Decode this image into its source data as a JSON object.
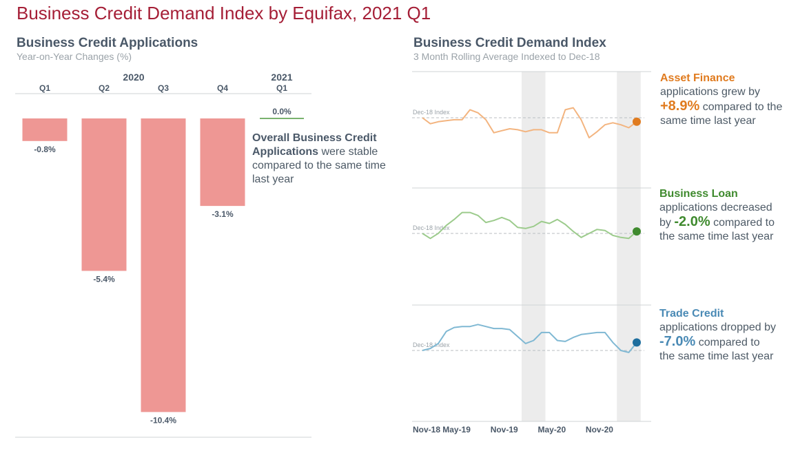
{
  "title": "Business Credit Demand Index by Equifax, 2021 Q1",
  "left": {
    "title": "Business Credit Applications",
    "subtitle": "Year-on-Year Changes (%)",
    "annotation": {
      "bold": "Overall Business Credit Applications",
      "rest": " were stable compared to the same time last year"
    }
  },
  "right": {
    "title": "Business Credit Demand Index",
    "subtitle": "3 Month Rolling Average Indexed to Dec-18",
    "baseline_label": "Dec-18 Index",
    "callouts": [
      {
        "title": "Asset Finance",
        "pre": "applications grew by",
        "value": "+8.9%",
        "post": "compared to the same time last year",
        "color": "#e07b1f"
      },
      {
        "title": "Business Loan",
        "pre": "applications decreased by",
        "value": "-2.0%",
        "post": "compared to the same time last year",
        "color": "#3f8a2e"
      },
      {
        "title": "Trade Credit",
        "pre": "applications dropped by",
        "value": "-7.0%",
        "post": "compared to the same time last year",
        "color": "#4a8ab5"
      }
    ]
  },
  "chart_data": [
    {
      "type": "bar",
      "title": "Business Credit Applications",
      "subtitle": "Year-on-Year Changes (%)",
      "groups": [
        {
          "label": "2020",
          "categories": [
            "Q1",
            "Q2",
            "Q3",
            "Q4"
          ]
        },
        {
          "label": "2021",
          "categories": [
            "Q1"
          ]
        }
      ],
      "categories": [
        "Q1",
        "Q2",
        "Q3",
        "Q4",
        "Q1"
      ],
      "values": [
        -0.8,
        -5.4,
        -10.4,
        -3.1,
        0.0
      ],
      "data_labels": [
        "-0.8%",
        "-5.4%",
        "-10.4%",
        "-3.1%",
        "0.0%"
      ],
      "colors": [
        "#ee9794",
        "#ee9794",
        "#ee9794",
        "#ee9794",
        "#79b26e"
      ],
      "ylim": [
        -10.9,
        0.5
      ]
    },
    {
      "type": "line",
      "title": "Business Credit Demand Index",
      "subtitle": "3 Month Rolling Average Indexed to Dec-18",
      "x_ticks": [
        "Nov-18",
        "May-19",
        "Nov-19",
        "May-20",
        "Nov-20"
      ],
      "x": [
        "2018-12",
        "2019-01",
        "2019-02",
        "2019-03",
        "2019-04",
        "2019-05",
        "2019-06",
        "2019-07",
        "2019-08",
        "2019-09",
        "2019-10",
        "2019-11",
        "2019-12",
        "2020-01",
        "2020-02",
        "2020-03",
        "2020-04",
        "2020-05",
        "2020-06",
        "2020-07",
        "2020-08",
        "2020-09",
        "2020-10",
        "2020-11",
        "2020-12",
        "2021-01",
        "2021-02",
        "2021-03"
      ],
      "shaded_periods": [
        [
          "2020-01",
          "2020-03"
        ],
        [
          "2021-01",
          "2021-03"
        ]
      ],
      "baseline": {
        "label": "Dec-18 Index",
        "value": 100
      },
      "series": [
        {
          "name": "Asset Finance",
          "color": "#f3b47f",
          "end_color": "#e07b1f",
          "values": [
            100,
            94,
            96,
            97,
            98,
            98,
            108,
            105,
            98,
            85,
            87,
            89,
            88,
            86,
            88,
            88,
            85,
            85,
            108,
            110,
            98,
            80,
            86,
            93,
            95,
            93,
            90,
            96
          ]
        },
        {
          "name": "Business Loan",
          "color": "#9ccb8c",
          "end_color": "#3f8a2e",
          "values": [
            100,
            95,
            100,
            108,
            114,
            121,
            121,
            118,
            111,
            113,
            116,
            113,
            106,
            105,
            107,
            112,
            110,
            114,
            109,
            102,
            96,
            100,
            104,
            103,
            98,
            96,
            95,
            102
          ]
        },
        {
          "name": "Trade Credit",
          "color": "#7fb8d3",
          "end_color": "#1d6e9e",
          "values": [
            100,
            102,
            107,
            119,
            123,
            124,
            124,
            126,
            124,
            122,
            122,
            121,
            114,
            107,
            110,
            118,
            118,
            110,
            109,
            113,
            116,
            117,
            118,
            118,
            108,
            100,
            98,
            108
          ]
        }
      ]
    }
  ]
}
